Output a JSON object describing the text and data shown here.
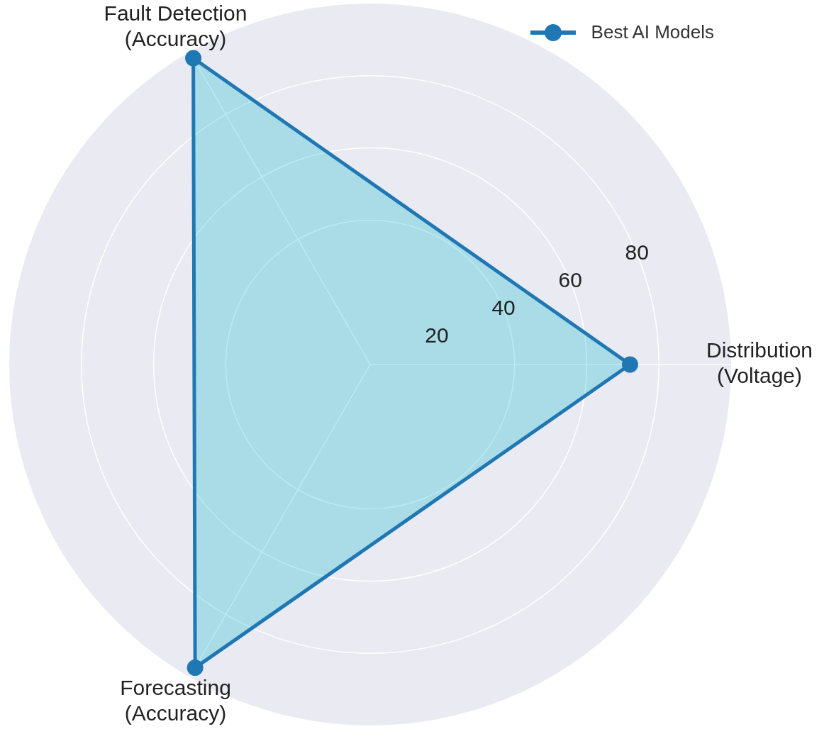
{
  "chart_data": {
    "type": "radar",
    "categories": [
      "Distribution\n(Voltage)",
      "Forecasting\n(Accuracy)",
      "Fault Detection\n(Accuracy)"
    ],
    "series": [
      {
        "name": "Best AI Models",
        "color": "#1f77b4",
        "values": [
          72,
          97,
          98
        ]
      }
    ],
    "ylim": [
      0,
      100
    ],
    "yticks": [
      20,
      40,
      60,
      80
    ],
    "grid": true,
    "legend": "top right",
    "marker": "circle"
  }
}
